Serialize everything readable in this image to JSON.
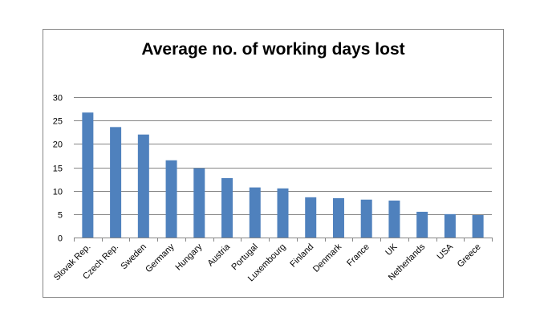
{
  "chart_data": {
    "type": "bar",
    "title": "Average no. of working days lost",
    "xlabel": "",
    "ylabel": "",
    "categories": [
      "Slovak Rep.",
      "Czech Rep.",
      "Sweden",
      "Germany",
      "Hungary",
      "Austria",
      "Portugal",
      "Luxembourg",
      "Finland",
      "Denmark",
      "France",
      "UK",
      "Netherlands",
      "USA",
      "Greece"
    ],
    "values": [
      26.7,
      23.6,
      22.0,
      16.5,
      14.8,
      12.7,
      10.7,
      10.5,
      8.6,
      8.4,
      8.1,
      7.9,
      5.5,
      5.0,
      4.8
    ],
    "ylim": [
      0,
      30
    ],
    "yticks": [
      0,
      5,
      10,
      15,
      20,
      25,
      30
    ],
    "grid": true,
    "legend": "none",
    "bar_color": "#4F81BD",
    "grid_color": "#868686"
  }
}
